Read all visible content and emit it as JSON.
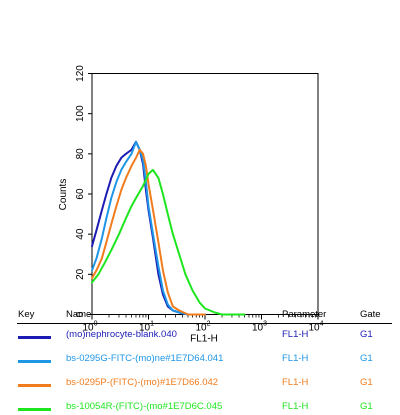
{
  "chart_data": {
    "type": "line",
    "title": "",
    "xlabel": "FL1-H",
    "ylabel": "Counts",
    "x_scale": "log",
    "xlim": [
      1,
      10000
    ],
    "ylim": [
      0,
      120
    ],
    "x_tick_labels": [
      "10^0",
      "10^1",
      "10^2",
      "10^3",
      "10^4"
    ],
    "x_tick_values": [
      1,
      10,
      100,
      1000,
      10000
    ],
    "y_tick_values": [
      0,
      20,
      40,
      60,
      80,
      100,
      120
    ],
    "series": [
      {
        "name": "(mo)nephrocyte-blank.040",
        "color": "#1c1cb4",
        "x": [
          1,
          1.2,
          1.5,
          1.8,
          2.2,
          2.7,
          3.3,
          4,
          5,
          6,
          7,
          8,
          9,
          10,
          12,
          15,
          18,
          22,
          27,
          35,
          50,
          70,
          100
        ],
        "y": [
          34,
          42,
          52,
          60,
          68,
          74,
          78,
          80,
          82,
          86,
          82,
          75,
          62,
          52,
          38,
          20,
          10,
          4,
          2,
          1,
          0,
          0,
          0
        ]
      },
      {
        "name": "bs-0295G-FITC-(mo)ne#1E7D64.041",
        "color": "#1e96e6",
        "x": [
          1,
          1.2,
          1.5,
          1.8,
          2.2,
          2.7,
          3.3,
          4,
          5,
          6,
          7,
          8,
          9,
          10,
          12,
          15,
          18,
          22,
          27,
          35,
          50,
          70,
          100
        ],
        "y": [
          22,
          28,
          38,
          48,
          58,
          66,
          72,
          76,
          80,
          86,
          82,
          77,
          66,
          54,
          40,
          24,
          12,
          5,
          2,
          1,
          0,
          0,
          0
        ]
      },
      {
        "name": "bs-0295P-(FITC)-(mo)#1E7D66.042",
        "color": "#f07c1e",
        "x": [
          1,
          1.2,
          1.5,
          1.8,
          2.2,
          2.7,
          3.3,
          4,
          5,
          6,
          7,
          8,
          9,
          10,
          12,
          15,
          18,
          22,
          27,
          35,
          50,
          70,
          100
        ],
        "y": [
          18,
          22,
          28,
          36,
          45,
          54,
          62,
          68,
          74,
          78,
          82,
          80,
          74,
          65,
          52,
          36,
          22,
          11,
          4,
          2,
          0,
          0,
          0
        ]
      },
      {
        "name": "bs-10054R-(FITC)-(mo#1E7D6C.045",
        "color": "#1ee61e",
        "x": [
          1,
          1.3,
          1.7,
          2.2,
          3,
          4,
          5,
          6,
          8,
          10,
          12,
          15,
          18,
          22,
          27,
          35,
          45,
          60,
          80,
          100,
          150,
          200,
          300,
          500
        ],
        "y": [
          16,
          20,
          26,
          32,
          40,
          48,
          54,
          58,
          64,
          70,
          72,
          68,
          60,
          50,
          40,
          30,
          20,
          12,
          6,
          3,
          1,
          0,
          0,
          0
        ]
      }
    ]
  },
  "key_table": {
    "headers": {
      "key": "Key",
      "name": "Name",
      "parameter": "Parameter",
      "gate": "Gate"
    },
    "rows": [
      {
        "name": "(mo)nephrocyte-blank.040",
        "parameter": "FL1-H",
        "gate": "G1",
        "color": "#1c1cb4",
        "text_color": "#1c1cb4"
      },
      {
        "name": "bs-0295G-FITC-(mo)ne#1E7D64.041",
        "parameter": "FL1-H",
        "gate": "G1",
        "color": "#1e96e6",
        "text_color": "#1e96e6"
      },
      {
        "name": "bs-0295P-(FITC)-(mo)#1E7D66.042",
        "parameter": "FL1-H",
        "gate": "G1",
        "color": "#f07c1e",
        "text_color": "#f07c1e"
      },
      {
        "name": "bs-10054R-(FITC)-(mo#1E7D6C.045",
        "parameter": "FL1-H",
        "gate": "G1",
        "color": "#1ee61e",
        "text_color": "#1ee61e"
      }
    ]
  }
}
